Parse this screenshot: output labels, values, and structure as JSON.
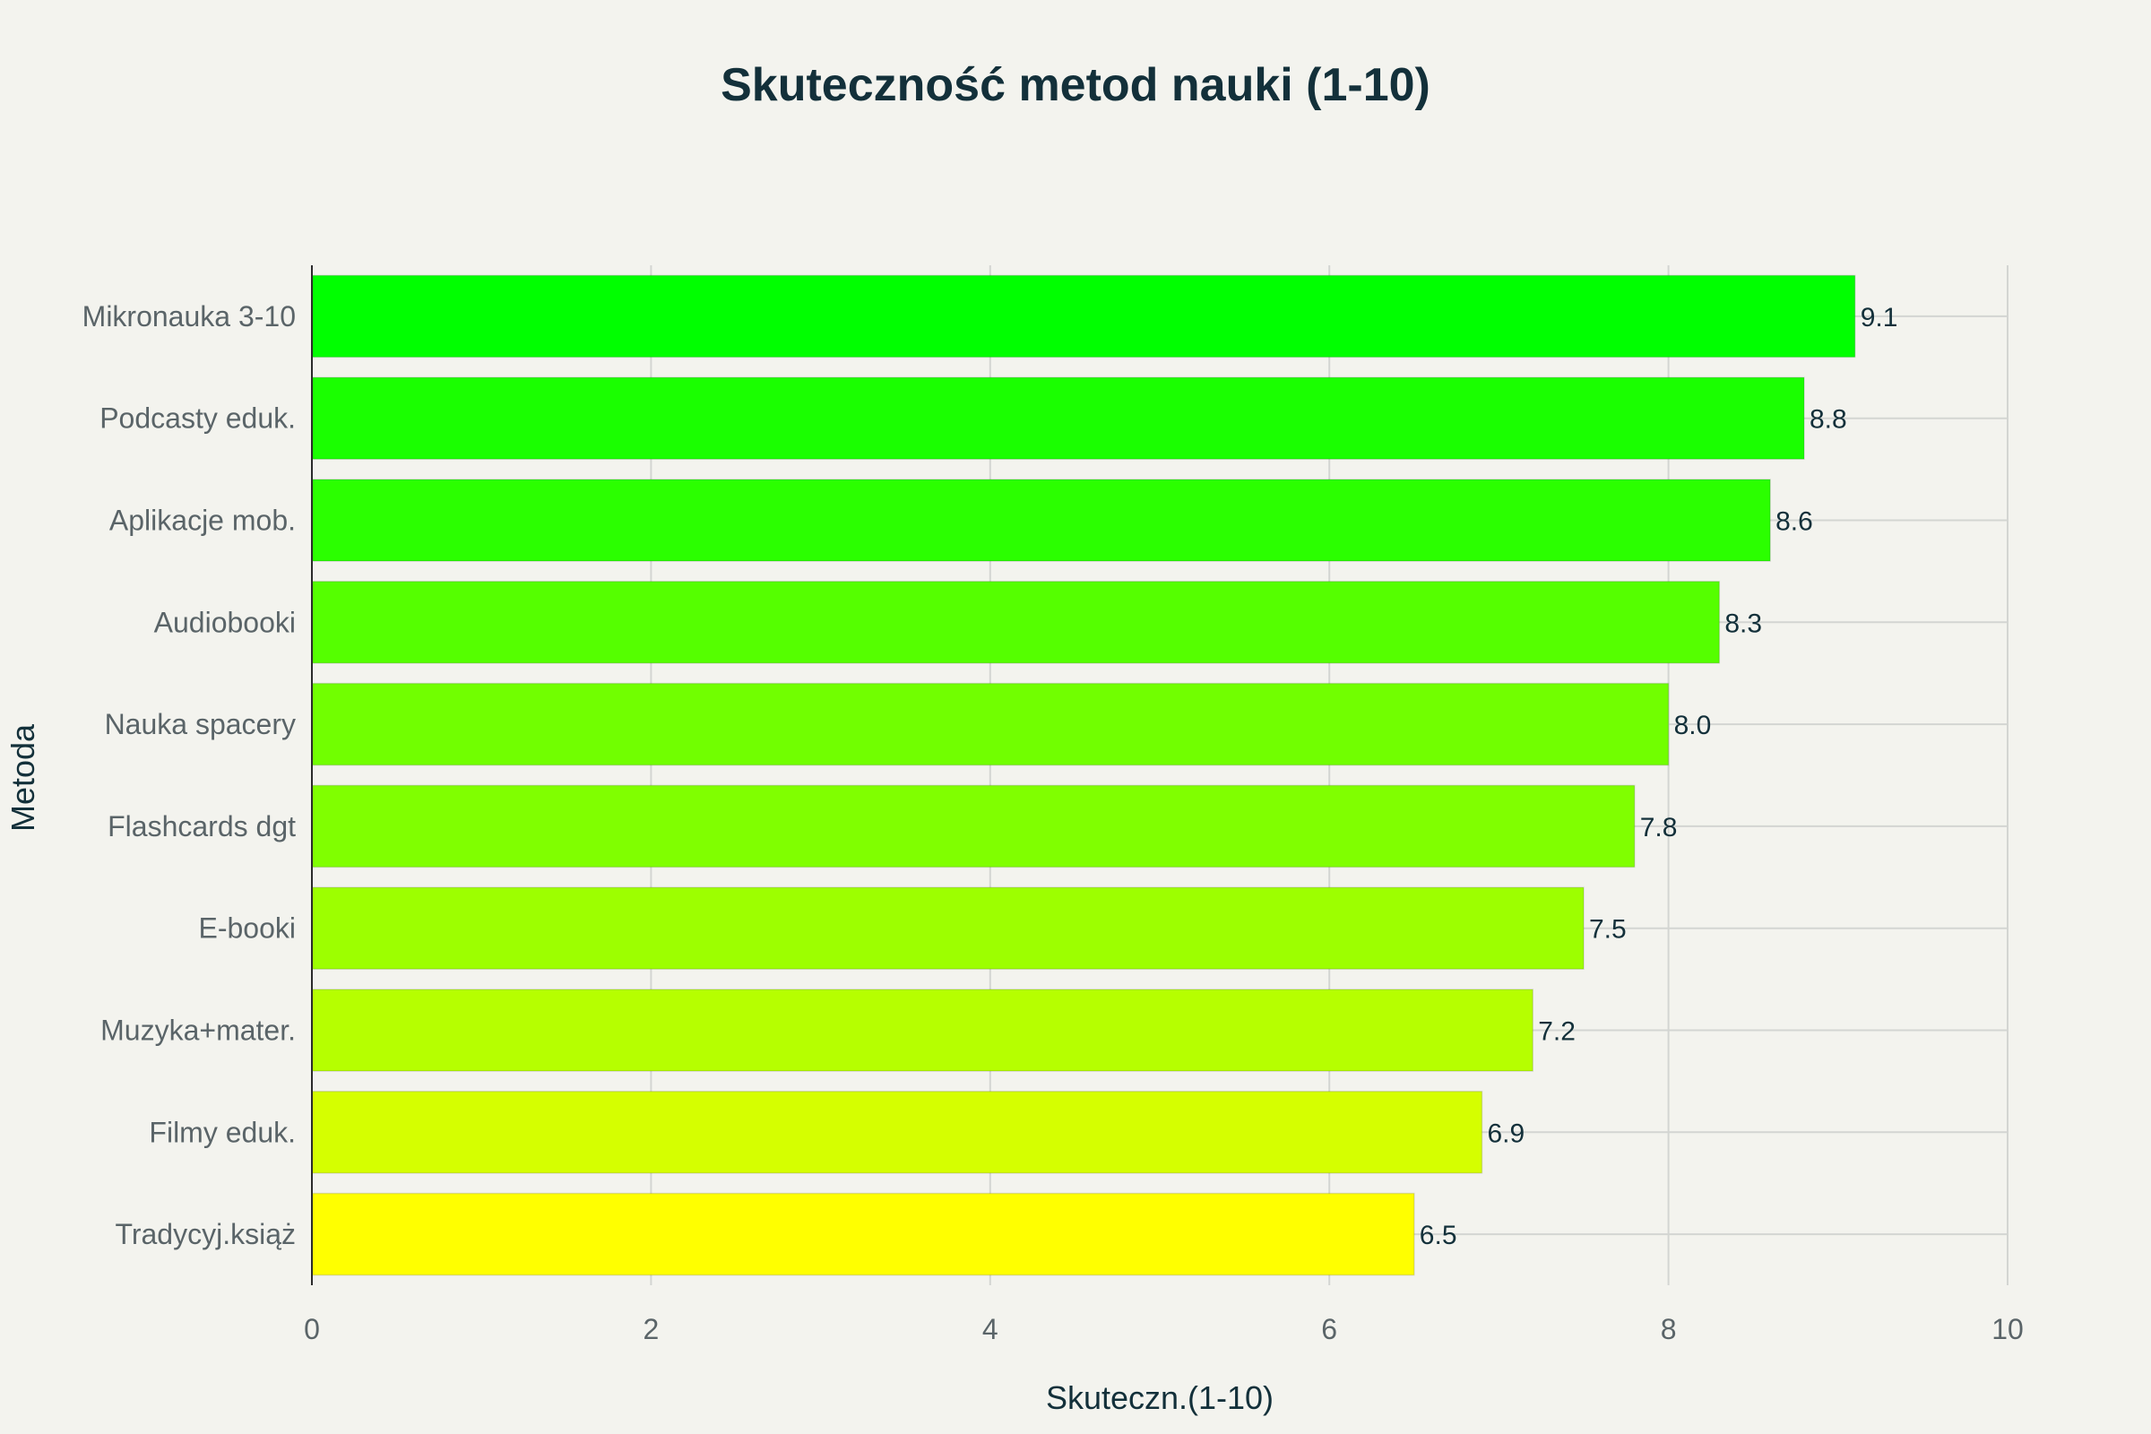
{
  "chart_data": {
    "type": "bar",
    "orientation": "horizontal",
    "title": "Skuteczność metod nauki (1-10)",
    "xlabel": "Skuteczn.(1-10)",
    "ylabel": "Metoda",
    "xlim": [
      0,
      10
    ],
    "xticks": [
      0,
      2,
      4,
      6,
      8,
      10
    ],
    "grid": true,
    "categories": [
      "Mikronauka 3-10",
      "Podcasty eduk.",
      "Aplikacje mob.",
      "Audiobooki",
      "Nauka spacery",
      "Flashcards dgt",
      "E-booki",
      "Muzyka+mater.",
      "Filmy eduk.",
      "Tradycyj.książ"
    ],
    "values": [
      9.1,
      8.8,
      8.6,
      8.3,
      8.0,
      7.8,
      7.5,
      7.2,
      6.9,
      6.5
    ],
    "value_labels": [
      "9.1",
      "8.8",
      "8.6",
      "8.3",
      "8.0",
      "7.8",
      "7.5",
      "7.2",
      "6.9",
      "6.5"
    ],
    "colors": [
      "#00ff00",
      "#1aff00",
      "#2bff00",
      "#55ff00",
      "#71ff00",
      "#80ff00",
      "#9dff00",
      "#b6ff00",
      "#d5ff00",
      "#ffff00"
    ]
  }
}
